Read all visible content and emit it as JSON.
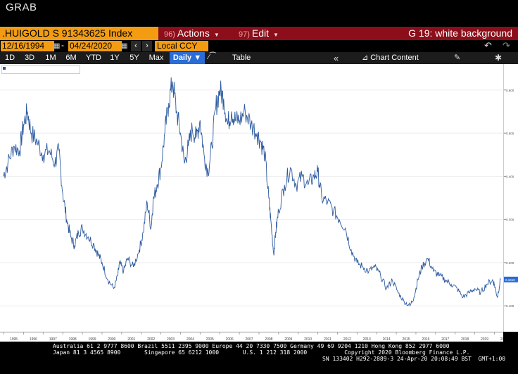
{
  "window_title": "GRAB",
  "toolbar": {
    "ticker": ".HUIGOLD S 91343625 Index",
    "actions": {
      "num": "96)",
      "label": "Actions"
    },
    "edit": {
      "num": "97)",
      "label": "Edit"
    },
    "graph_title": "G 19: white background"
  },
  "range": {
    "start": "12/16/1994",
    "end": "04/24/2020",
    "currency": "Local CCY"
  },
  "periods": [
    "1D",
    "3D",
    "1M",
    "6M",
    "YTD",
    "1Y",
    "5Y",
    "Max"
  ],
  "frequency": "Daily",
  "table_label": "Table",
  "chart_content_label": "Chart Content",
  "colors": {
    "accent": "#f39c12",
    "menu_bar": "#8b0e1a",
    "selected_tab": "#2b6cd6",
    "series": "#2c5aa0"
  },
  "chart_data": {
    "type": "line",
    "x_ticks": [
      "1995",
      "1996",
      "1997",
      "1998",
      "1999",
      "2000",
      "2001",
      "2002",
      "2003",
      "2004",
      "2005",
      "2006",
      "2007",
      "2008",
      "2009",
      "2010",
      "2011",
      "2012",
      "2013",
      "2014",
      "2015",
      "2016",
      "2017",
      "2018",
      "2019",
      "2020"
    ],
    "y_ticks": [
      "0.600",
      "0.500",
      "0.400",
      "0.300",
      "0.200",
      "0.100"
    ],
    "ylim": [
      0.04,
      0.66
    ],
    "last_value_label": "0.1610",
    "series": [
      {
        "x": [
          1994.96,
          1995.2,
          1995.5,
          1995.8,
          1996.0,
          1996.2,
          1996.4,
          1996.7,
          1997.0,
          1997.3,
          1997.6,
          1997.8,
          1998.0,
          1998.2,
          1998.4,
          1998.6,
          1998.8,
          1999.0,
          1999.3,
          1999.6,
          1999.8,
          2000.0,
          2000.3,
          2000.6,
          2000.8,
          2000.9,
          2001.1,
          2001.3,
          2001.6,
          2001.9,
          2002.1,
          2002.3,
          2002.5,
          2002.6,
          2002.8,
          2003.0,
          2003.2,
          2003.4,
          2003.6,
          2003.8,
          2004.0,
          2004.2,
          2004.4,
          2004.6,
          2004.8,
          2005.0,
          2005.2,
          2005.4,
          2005.6,
          2005.8,
          2006.0,
          2006.2,
          2006.4,
          2006.6,
          2006.8,
          2007.0,
          2007.3,
          2007.6,
          2007.9,
          2008.1,
          2008.3,
          2008.5,
          2008.6,
          2008.75,
          2008.85,
          2009.0,
          2009.3,
          2009.6,
          2009.9,
          2010.2,
          2010.5,
          2010.8,
          2011.0,
          2011.2,
          2011.5,
          2011.8,
          2012.1,
          2012.4,
          2012.7,
          2013.0,
          2013.3,
          2013.6,
          2013.9,
          2014.2,
          2014.5,
          2014.8,
          2015.1,
          2015.4,
          2015.7,
          2015.9,
          2016.1,
          2016.3,
          2016.6,
          2016.9,
          2017.2,
          2017.5,
          2017.8,
          2018.1,
          2018.4,
          2018.7,
          2019.0,
          2019.3,
          2019.6,
          2019.9,
          2020.0,
          2020.15,
          2020.31
        ],
        "values": [
          0.4,
          0.43,
          0.47,
          0.46,
          0.52,
          0.55,
          0.5,
          0.48,
          0.45,
          0.46,
          0.43,
          0.46,
          0.36,
          0.3,
          0.26,
          0.24,
          0.27,
          0.28,
          0.26,
          0.24,
          0.22,
          0.2,
          0.16,
          0.14,
          0.17,
          0.2,
          0.18,
          0.21,
          0.19,
          0.23,
          0.27,
          0.34,
          0.28,
          0.34,
          0.38,
          0.42,
          0.5,
          0.57,
          0.62,
          0.55,
          0.5,
          0.43,
          0.47,
          0.51,
          0.49,
          0.53,
          0.45,
          0.41,
          0.47,
          0.56,
          0.6,
          0.58,
          0.52,
          0.55,
          0.53,
          0.53,
          0.55,
          0.52,
          0.5,
          0.48,
          0.45,
          0.35,
          0.3,
          0.22,
          0.27,
          0.32,
          0.38,
          0.42,
          0.38,
          0.4,
          0.38,
          0.4,
          0.41,
          0.35,
          0.34,
          0.32,
          0.3,
          0.28,
          0.23,
          0.2,
          0.19,
          0.18,
          0.19,
          0.17,
          0.14,
          0.16,
          0.13,
          0.11,
          0.1,
          0.12,
          0.16,
          0.19,
          0.21,
          0.18,
          0.17,
          0.16,
          0.15,
          0.14,
          0.12,
          0.13,
          0.14,
          0.13,
          0.15,
          0.16,
          0.15,
          0.12,
          0.161
        ]
      }
    ]
  },
  "footer": {
    "line1": "Australia 61 2 9777 8600 Brazil 5511 2395 9000 Europe 44 20 7330 7500 Germany 49 69 9204 1210 Hong Kong 852 2977 6000",
    "line2": "Japan 81 3 4565 8900       Singapore 65 6212 1000       U.S. 1 212 318 2000           Copyright 2020 Bloomberg Finance L.P.",
    "line3": "SN 133402 H292-2889-3 24-Apr-20 20:08:49 BST  GMT+1:00"
  }
}
